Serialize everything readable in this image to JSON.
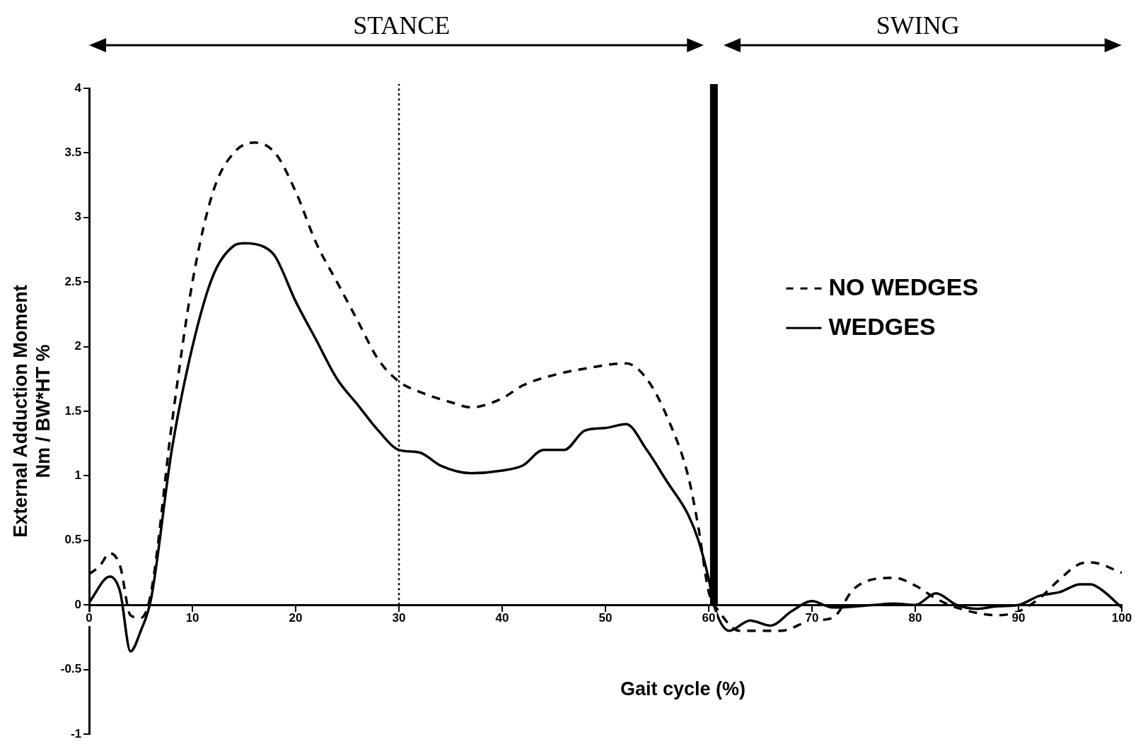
{
  "chart_data": {
    "type": "line",
    "xlabel": "Gait cycle (%)",
    "ylabel": "External Adduction Moment\nNm / BW*HT %",
    "xlim": [
      0,
      100
    ],
    "xticks": [
      0,
      10,
      20,
      30,
      40,
      50,
      60,
      70,
      80,
      90,
      100
    ],
    "ylim": [
      -1,
      4
    ],
    "yticks": [
      -1,
      -0.5,
      0,
      0.5,
      1,
      1.5,
      2,
      2.5,
      3,
      3.5,
      4
    ],
    "grid": false,
    "legend": "right",
    "marker": "none",
    "series": [
      {
        "name": "NO WEDGES",
        "color": "#000000",
        "line_style": "dashed",
        "x": [
          0,
          1,
          2,
          3,
          4,
          5,
          6,
          8,
          10,
          12,
          14,
          16,
          18,
          20,
          22,
          24,
          26,
          28,
          30,
          32,
          35,
          37,
          40,
          42,
          45,
          48,
          52,
          54,
          56,
          58,
          59,
          60,
          61,
          63,
          67,
          70,
          72,
          74,
          76,
          78,
          80,
          82,
          84,
          88,
          90,
          92,
          94,
          96,
          97,
          100
        ],
        "values": [
          0.24,
          0.3,
          0.4,
          0.3,
          -0.08,
          -0.1,
          0.1,
          1.4,
          2.5,
          3.2,
          3.5,
          3.58,
          3.5,
          3.2,
          2.8,
          2.5,
          2.2,
          1.9,
          1.73,
          1.65,
          1.57,
          1.53,
          1.6,
          1.7,
          1.78,
          1.83,
          1.87,
          1.75,
          1.45,
          1.0,
          0.6,
          0.1,
          -0.05,
          -0.2,
          -0.2,
          -0.12,
          -0.1,
          0.12,
          0.2,
          0.21,
          0.15,
          0.05,
          -0.02,
          -0.08,
          -0.05,
          0.05,
          0.2,
          0.32,
          0.33,
          0.25
        ]
      },
      {
        "name": "WEDGES",
        "color": "#000000",
        "line_style": "solid",
        "x": [
          0,
          2,
          3,
          4,
          5,
          6,
          8,
          10,
          12,
          14,
          15,
          17,
          18,
          20,
          22,
          24,
          26,
          28,
          30,
          32,
          34,
          37,
          40,
          42,
          44,
          46,
          48,
          50,
          52,
          54,
          56,
          58,
          59,
          60,
          60.5,
          62,
          64,
          66,
          68,
          70,
          72,
          76,
          78,
          80,
          82,
          84,
          86,
          88,
          90,
          92,
          94,
          96,
          97,
          98,
          100
        ],
        "values": [
          0.02,
          0.22,
          0.1,
          -0.36,
          -0.2,
          0.05,
          1.2,
          2.0,
          2.55,
          2.78,
          2.8,
          2.77,
          2.7,
          2.35,
          2.05,
          1.75,
          1.55,
          1.35,
          1.2,
          1.18,
          1.08,
          1.02,
          1.04,
          1.08,
          1.2,
          1.2,
          1.35,
          1.37,
          1.4,
          1.2,
          0.95,
          0.7,
          0.5,
          0.2,
          0,
          -0.2,
          -0.12,
          -0.16,
          -0.05,
          0.03,
          -0.02,
          0,
          0.01,
          0,
          0.09,
          0,
          -0.03,
          -0.01,
          0,
          0.07,
          0.1,
          0.16,
          0.16,
          0.12,
          -0.02
        ]
      }
    ],
    "ref_lines": [
      {
        "axis": "x",
        "value": 30,
        "line_style": "dotted",
        "color": "#000000"
      },
      {
        "axis": "x",
        "value": 60.5,
        "line_style": "solid",
        "color": "#000000"
      }
    ],
    "annotations": [
      "STANCE",
      "SWING"
    ]
  }
}
